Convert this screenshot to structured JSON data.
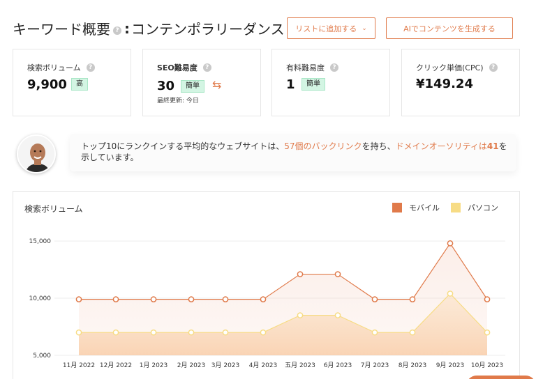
{
  "header": {
    "title_prefix": "キーワード概要",
    "title_separator": ":",
    "keyword": "コンテンポラリーダンス",
    "add_to_list_label": "リストに追加する",
    "ai_content_label": "AIでコンテンツを生成する"
  },
  "metrics": {
    "volume": {
      "label": "検索ボリューム",
      "value": "9,900",
      "badge": "高"
    },
    "seo": {
      "label": "SEO難易度",
      "value": "30",
      "badge": "簡単",
      "updated": "最終更新: 今日"
    },
    "paid": {
      "label": "有料難易度",
      "value": "1",
      "badge": "簡単"
    },
    "cpc": {
      "label": "クリック単価(CPC)",
      "value": "¥149.24"
    }
  },
  "insight": {
    "part1": "トップ10にランクインする平均的なウェブサイトは、",
    "link1": "57個のバックリンク",
    "part2": "を持ち、",
    "link2": "ドメインオーソリティは",
    "link2_number": "41",
    "part3": "を示しています。"
  },
  "colors": {
    "accent": "#e07a4a",
    "mobile": "#e07a4a",
    "desktop": "#f7dc85",
    "badge_bg": "#d3f5e3"
  },
  "chart_data": {
    "type": "area",
    "title": "検索ボリューム",
    "categories": [
      "11月 2022",
      "12月 2022",
      "1月 2023",
      "2月 2023",
      "3月 2023",
      "4月 2023",
      "五月 2023",
      "6月 2023",
      "7月 2023",
      "8月 2023",
      "9月 2023",
      "10月 2023"
    ],
    "series": [
      {
        "name": "モバイル",
        "values": [
          9900,
          9900,
          9900,
          9900,
          9900,
          9900,
          12100,
          12100,
          9900,
          9900,
          14800,
          9900
        ]
      },
      {
        "name": "パソコン",
        "values": [
          7000,
          7000,
          7000,
          7000,
          7000,
          7000,
          8500,
          8500,
          7000,
          7000,
          10400,
          7000
        ]
      }
    ],
    "y_ticks": [
      "15,000",
      "10,000",
      "5,000"
    ],
    "y_tick_values": [
      15000,
      10000,
      5000
    ],
    "ylim": [
      5000,
      15000
    ],
    "grid": true,
    "legend_position": "top-right"
  }
}
